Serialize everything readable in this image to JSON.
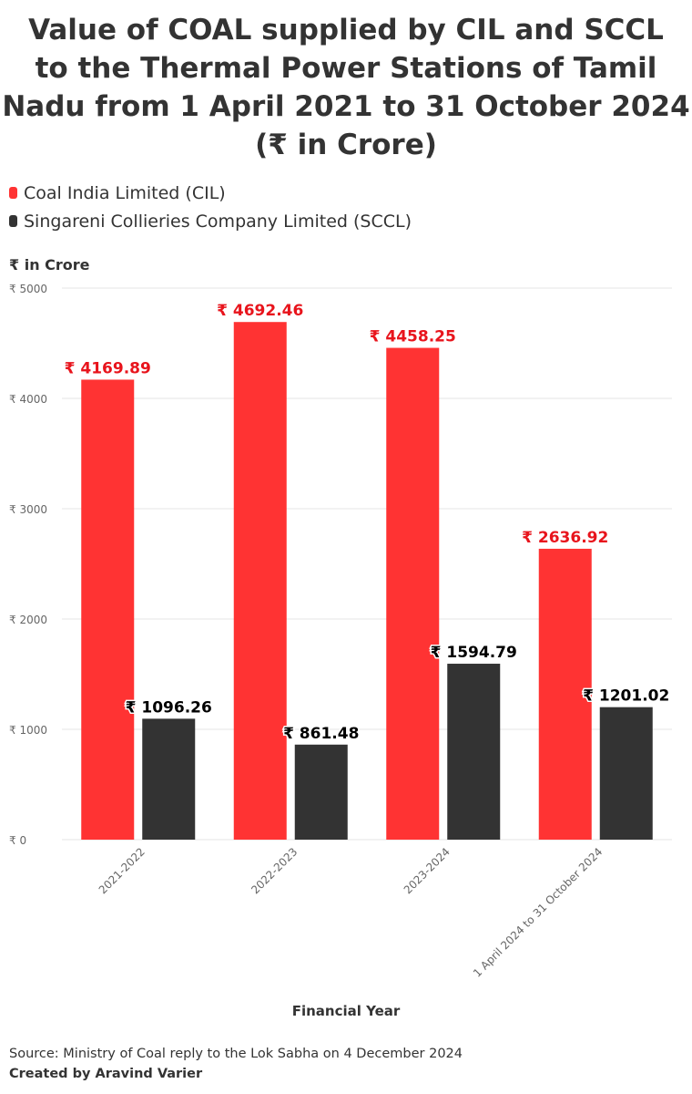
{
  "chart_data": {
    "type": "bar",
    "title_lines": [
      "Value of COAL supplied by CIL and SCCL",
      "to the Thermal Power Stations of Tamil",
      "Nadu from 1 April 2021 to 31 October 2024",
      "(₹ in Crore)"
    ],
    "xlabel": "Financial Year",
    "ylabel": "₹ in Crore",
    "categories": [
      "2021-2022",
      "2022-2023",
      "2023-2024",
      "1 April 2024 to 31 October 2024"
    ],
    "series": [
      {
        "name": "Coal India Limited (CIL)",
        "color": "#ff3333",
        "values": [
          4169.89,
          4692.46,
          4458.25,
          2636.92
        ],
        "labels": [
          "₹ 4169.89",
          "₹ 4692.46",
          "₹ 4458.25",
          "₹ 2636.92"
        ]
      },
      {
        "name": "Singareni Collieries Company Limited (SCCL)",
        "color": "#333333",
        "values": [
          1096.26,
          861.48,
          1594.79,
          1201.02
        ],
        "labels": [
          "₹ 1096.26",
          "₹ 861.48",
          "₹ 1594.79",
          "₹ 1201.02"
        ]
      }
    ],
    "ylim": [
      0,
      5000
    ],
    "yticks": [
      0,
      1000,
      2000,
      3000,
      4000,
      5000
    ],
    "ytick_labels": [
      "₹ 0",
      "₹ 1000",
      "₹ 2000",
      "₹ 3000",
      "₹ 4000",
      "₹ 5000"
    ],
    "grid": true,
    "legend_position": "top-left",
    "label_colors": [
      "#e8141c",
      "#000000"
    ]
  },
  "footer": {
    "source": "Source: Ministry of Coal reply to the Lok Sabha on 4 December 2024",
    "credit": "Created by Aravind Varier"
  }
}
